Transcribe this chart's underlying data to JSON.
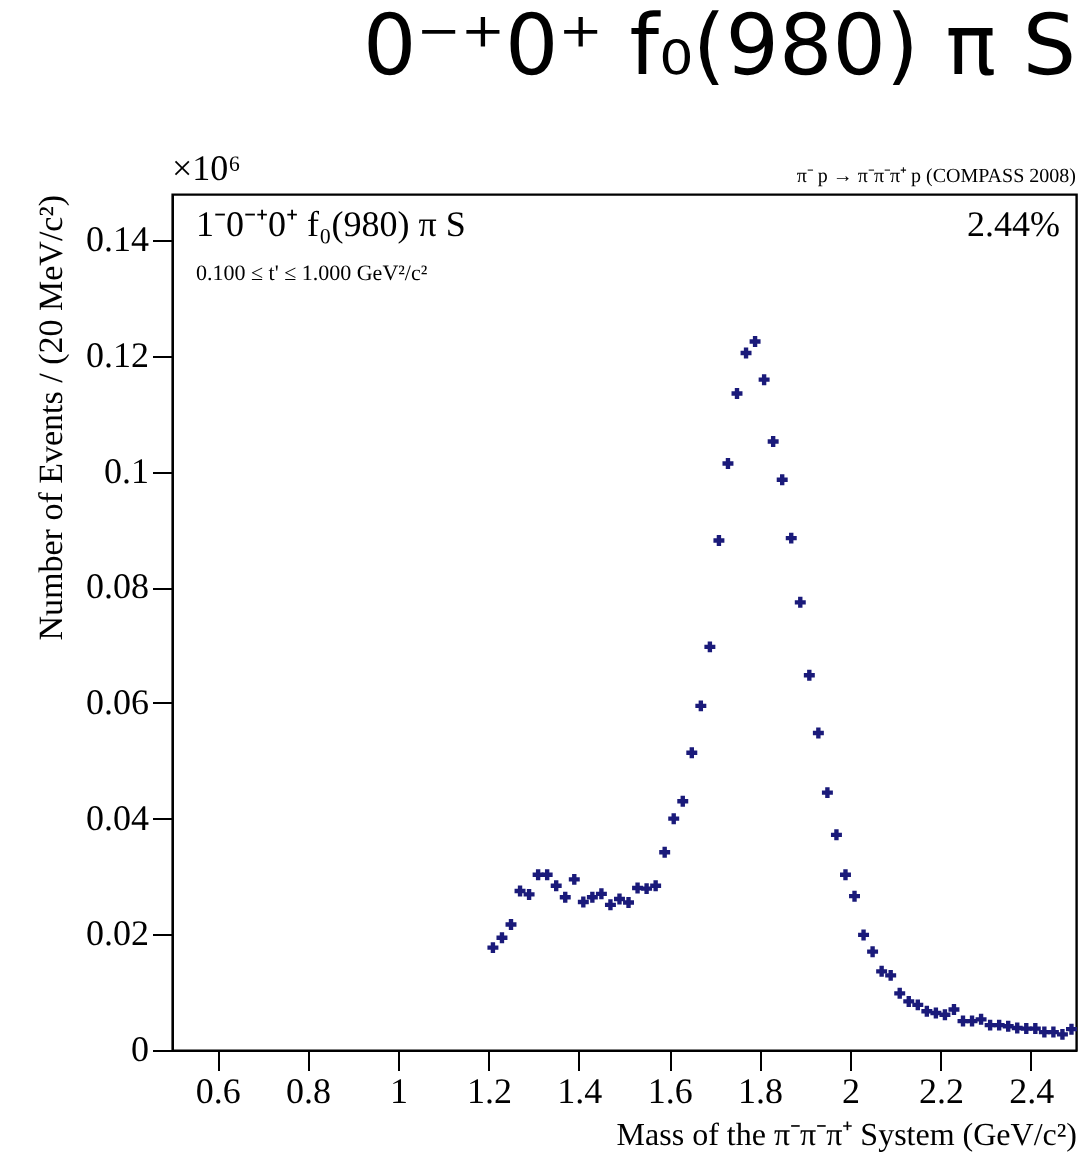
{
  "chart_data": {
    "type": "scatter",
    "title": "0⁻⁺0⁺ f₀(980) π S",
    "xlabel": "Mass of the π⁻π⁻π⁺ System (GeV/c²)",
    "ylabel": "Number of Events / (20 MeV/c²)",
    "annotations": [
      "×10⁶",
      "π⁻ p → π⁻π⁻π⁺ p (COMPASS 2008)",
      "1⁻0⁻⁺0⁺ f₀(980) π S",
      "0.100 ≤ t' ≤ 1.000 GeV²/c²",
      "2.44%"
    ],
    "x": [
      1.21,
      1.23,
      1.25,
      1.27,
      1.29,
      1.31,
      1.33,
      1.35,
      1.37,
      1.39,
      1.41,
      1.43,
      1.45,
      1.47,
      1.49,
      1.51,
      1.53,
      1.55,
      1.57,
      1.59,
      1.61,
      1.63,
      1.65,
      1.67,
      1.69,
      1.71,
      1.73,
      1.75,
      1.77,
      1.79,
      1.81,
      1.83,
      1.85,
      1.87,
      1.89,
      1.91,
      1.93,
      1.95,
      1.97,
      1.99,
      2.01,
      2.03,
      2.05,
      2.07,
      2.09,
      2.11,
      2.13,
      2.15,
      2.17,
      2.19,
      2.21,
      2.23,
      2.25,
      2.27,
      2.29,
      2.31,
      2.33,
      2.35,
      2.37,
      2.39,
      2.41,
      2.43,
      2.45,
      2.47,
      2.49
    ],
    "series": [
      {
        "color": "#1a1a7a",
        "values": [
          0.0177,
          0.0194,
          0.0217,
          0.0275,
          0.0269,
          0.0303,
          0.0303,
          0.0284,
          0.0264,
          0.0295,
          0.0256,
          0.0264,
          0.027,
          0.0251,
          0.0261,
          0.0255,
          0.028,
          0.0279,
          0.0284,
          0.0342,
          0.04,
          0.043,
          0.0514,
          0.0595,
          0.0697,
          0.0881,
          0.1014,
          0.1135,
          0.1205,
          0.1225,
          0.1159,
          0.1052,
          0.0986,
          0.0885,
          0.0774,
          0.0648,
          0.0548,
          0.0445,
          0.0372,
          0.0303,
          0.0266,
          0.0199,
          0.017,
          0.0136,
          0.0129,
          0.0098,
          0.0084,
          0.0078,
          0.0067,
          0.0064,
          0.0061,
          0.007,
          0.005,
          0.005,
          0.0053,
          0.0043,
          0.0043,
          0.0041,
          0.0038,
          0.0037,
          0.0037,
          0.0031,
          0.0031,
          0.0027,
          0.0036
        ]
      }
    ],
    "xlim": [
      0.5,
      2.5
    ],
    "ylim": [
      0,
      0.148
    ],
    "xticks": [
      0.6,
      0.8,
      1,
      1.2,
      1.4,
      1.6,
      1.8,
      2,
      2.2,
      2.4
    ],
    "yticks": [
      0,
      0.02,
      0.04,
      0.06,
      0.08,
      0.1,
      0.12,
      0.14
    ],
    "marker": "cross",
    "grid": false,
    "legend": false
  }
}
